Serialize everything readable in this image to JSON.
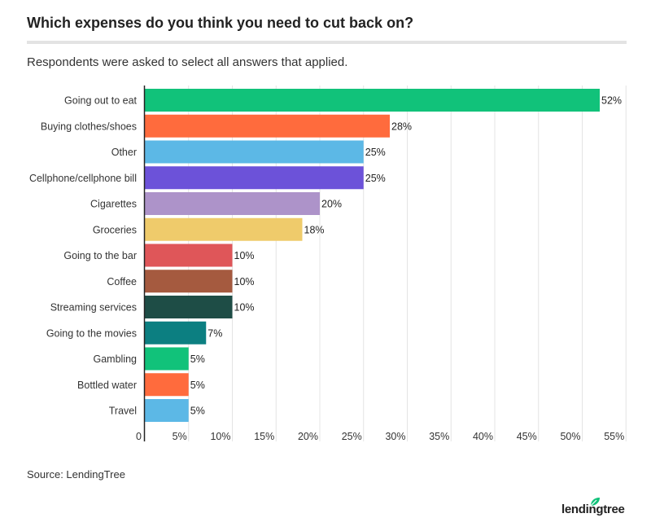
{
  "header": {
    "title": "Which expenses do you think you need to cut back on?",
    "subtitle": "Respondents were asked to select all answers that applied."
  },
  "footer": {
    "source": "Source: LendingTree",
    "logo_text": "lendingtree"
  },
  "chart_data": {
    "type": "bar",
    "orientation": "horizontal",
    "title": "Which expenses do you think you need to cut back on?",
    "subtitle": "Respondents were asked to select all answers that applied.",
    "xlabel": "",
    "ylabel": "",
    "xlim": [
      0,
      55
    ],
    "grid": true,
    "categories": [
      "Going out to eat",
      "Buying clothes/shoes",
      "Other",
      "Cellphone/cellphone bill",
      "Cigarettes",
      "Groceries",
      "Going to the bar",
      "Coffee",
      "Streaming services",
      "Going to the movies",
      "Gambling",
      "Bottled water",
      "Travel"
    ],
    "values": [
      52,
      28,
      25,
      25,
      20,
      18,
      10,
      10,
      10,
      7,
      5,
      5,
      5
    ],
    "value_labels": [
      "52%",
      "28%",
      "25%",
      "25%",
      "20%",
      "18%",
      "10%",
      "10%",
      "10%",
      "7%",
      "5%",
      "5%",
      "5%"
    ],
    "colors": [
      "#11c27a",
      "#ff6b3d",
      "#5cb8e6",
      "#6c52d9",
      "#ad93c9",
      "#efcb6b",
      "#df5659",
      "#a55a3f",
      "#1e4d46",
      "#0c7f81",
      "#11c27a",
      "#ff6b3d",
      "#5cb8e6"
    ],
    "x_ticks": [
      {
        "value": 0,
        "label": "0"
      },
      {
        "value": 5,
        "label": "5%"
      },
      {
        "value": 10,
        "label": "10%"
      },
      {
        "value": 15,
        "label": "15%"
      },
      {
        "value": 20,
        "label": "20%"
      },
      {
        "value": 25,
        "label": "25%"
      },
      {
        "value": 30,
        "label": "30%"
      },
      {
        "value": 35,
        "label": "35%"
      },
      {
        "value": 40,
        "label": "40%"
      },
      {
        "value": 45,
        "label": "45%"
      },
      {
        "value": 50,
        "label": "50%"
      },
      {
        "value": 55,
        "label": "55%"
      }
    ]
  }
}
